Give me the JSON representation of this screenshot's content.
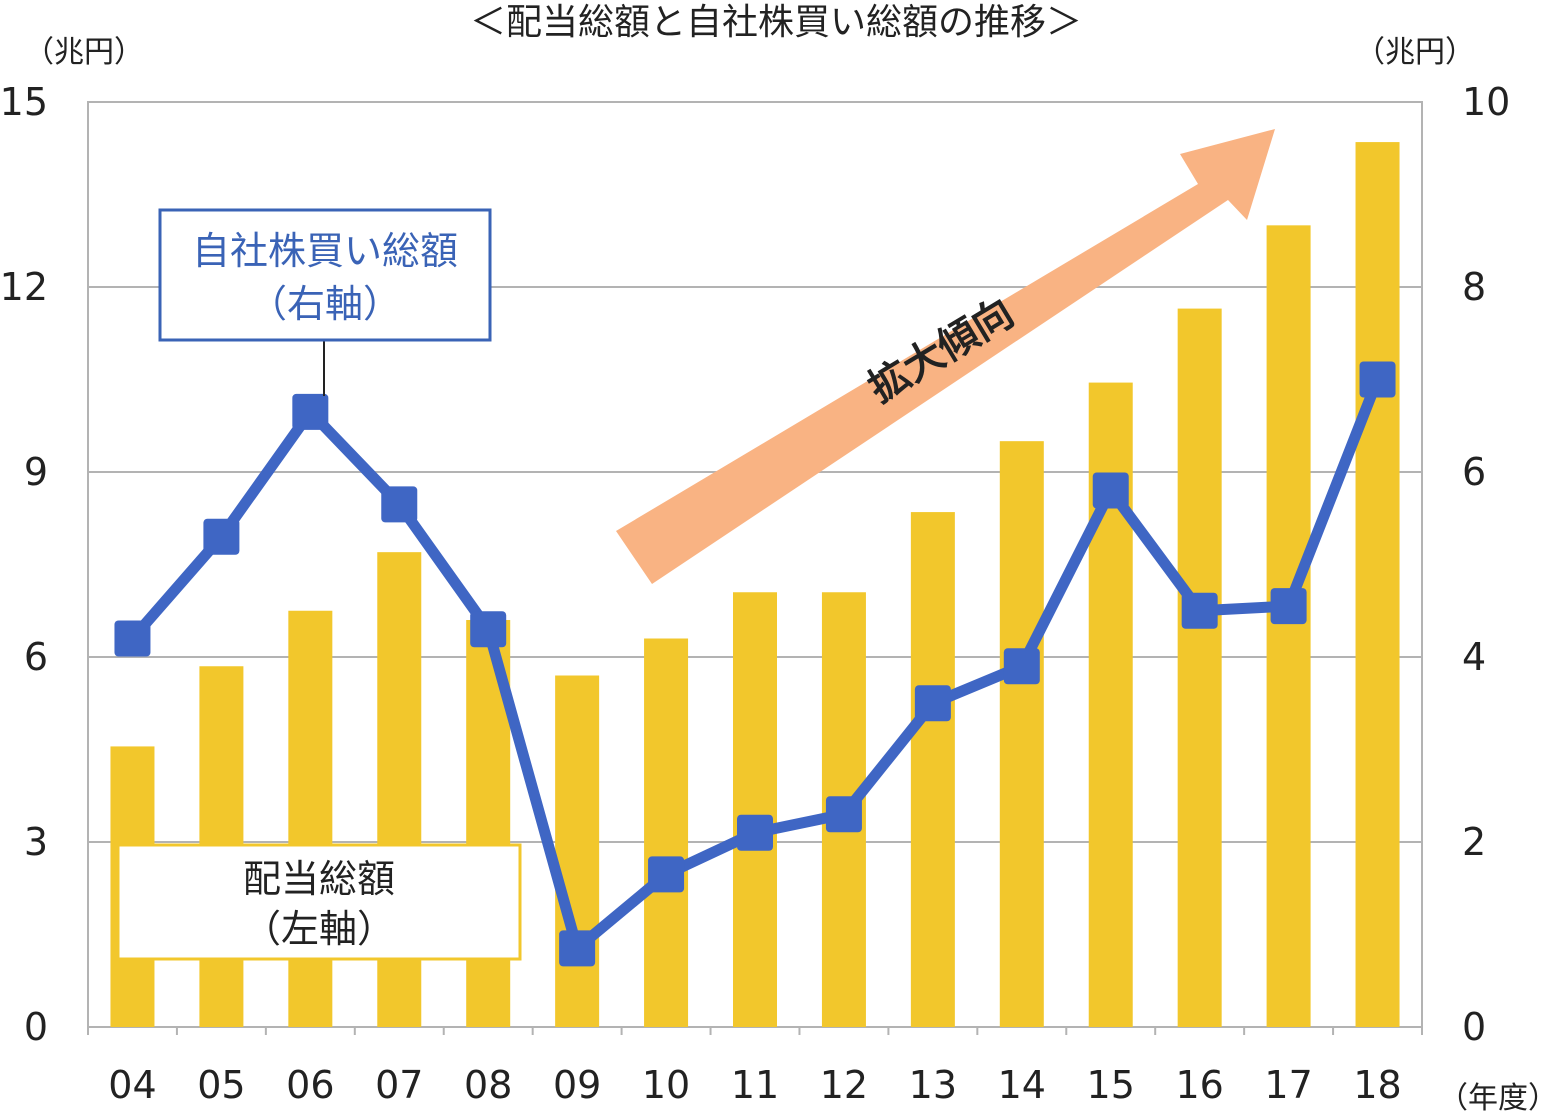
{
  "chart_data": {
    "type": "bar+line",
    "title": "＜配当総額と自社株買い総額の推移＞",
    "left_unit": "（兆円）",
    "right_unit": "（兆円）",
    "x_unit": "（年度）",
    "categories": [
      "04",
      "05",
      "06",
      "07",
      "08",
      "09",
      "10",
      "11",
      "12",
      "13",
      "14",
      "15",
      "16",
      "17",
      "18"
    ],
    "left_axis": {
      "min": 0,
      "max": 15,
      "ticks": [
        "0",
        "3",
        "6",
        "9",
        "12",
        "15"
      ]
    },
    "right_axis": {
      "min": 0,
      "max": 10,
      "ticks": [
        "0",
        "2",
        "4",
        "6",
        "8",
        "10"
      ]
    },
    "grid": true,
    "series": [
      {
        "name": "配当総額",
        "axis": "left",
        "kind": "bar",
        "color": "#f2c72c",
        "values": [
          4.55,
          5.85,
          6.75,
          7.7,
          6.6,
          5.7,
          6.3,
          7.05,
          7.05,
          8.35,
          9.5,
          10.45,
          11.65,
          13.0,
          14.35
        ]
      },
      {
        "name": "自社株買い総額",
        "axis": "right",
        "kind": "line",
        "color": "#3f66c4",
        "values": [
          4.2,
          5.3,
          6.65,
          5.65,
          4.3,
          0.85,
          1.65,
          2.1,
          2.3,
          3.5,
          3.9,
          5.8,
          4.5,
          4.55,
          7.0
        ]
      }
    ],
    "annotations": {
      "line_label": [
        "自社株買い総額",
        "（右軸）"
      ],
      "bar_label": [
        "配当総額",
        "（左軸）"
      ],
      "trend_label": "拡大傾向"
    },
    "colors": {
      "bar": "#f2c72c",
      "line": "#3f66c4",
      "grid": "#b3b3b3",
      "arrow": "#f9b383",
      "line_label_border": "#3a63b6",
      "bar_label_border": "#f2c72c"
    }
  }
}
